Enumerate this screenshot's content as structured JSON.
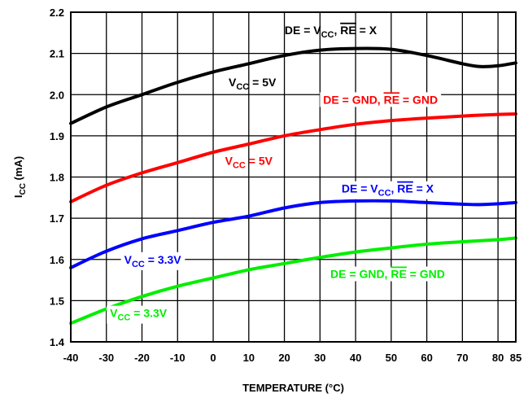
{
  "chart_data": {
    "type": "line",
    "xlabel": "TEMPERATURE (°C)",
    "ylabel_main": "I",
    "ylabel_sub": "CC",
    "ylabel_suffix": " (mA)",
    "xlim": [
      -40,
      85
    ],
    "ylim": [
      1.4,
      2.2
    ],
    "x_ticks": [
      -40,
      -30,
      -20,
      -10,
      0,
      10,
      20,
      30,
      40,
      50,
      60,
      70,
      80,
      85
    ],
    "x_tick_labels": [
      "-40",
      "-30",
      "-20",
      "-10",
      "0",
      "10",
      "20",
      "30",
      "40",
      "50",
      "60",
      "70",
      "80",
      "85"
    ],
    "y_ticks": [
      1.4,
      1.5,
      1.6,
      1.7,
      1.8,
      1.9,
      2.0,
      2.1,
      2.2
    ],
    "y_tick_labels": [
      "1.4",
      "1.5",
      "1.6",
      "1.7",
      "1.8",
      "1.9",
      "2.0",
      "2.1",
      "2.2"
    ],
    "grid": true,
    "series": [
      {
        "key": "black",
        "color": "#000000",
        "x": [
          -40,
          -30,
          -20,
          -10,
          0,
          10,
          20,
          30,
          40,
          50,
          60,
          70,
          75,
          80,
          85
        ],
        "y": [
          1.93,
          1.97,
          2.0,
          2.03,
          2.055,
          2.075,
          2.095,
          2.108,
          2.112,
          2.11,
          2.095,
          2.075,
          2.068,
          2.07,
          2.077
        ]
      },
      {
        "key": "red",
        "color": "#ff0000",
        "x": [
          -40,
          -30,
          -20,
          -10,
          0,
          10,
          20,
          30,
          40,
          50,
          60,
          70,
          80,
          85
        ],
        "y": [
          1.74,
          1.78,
          1.81,
          1.835,
          1.86,
          1.88,
          1.9,
          1.915,
          1.928,
          1.937,
          1.943,
          1.948,
          1.952,
          1.953
        ]
      },
      {
        "key": "blue",
        "color": "#0000ff",
        "x": [
          -40,
          -30,
          -20,
          -10,
          0,
          10,
          20,
          30,
          40,
          50,
          60,
          70,
          75,
          80,
          85
        ],
        "y": [
          1.58,
          1.62,
          1.65,
          1.67,
          1.69,
          1.705,
          1.725,
          1.738,
          1.742,
          1.742,
          1.738,
          1.734,
          1.733,
          1.735,
          1.738
        ]
      },
      {
        "key": "green",
        "color": "#00ee00",
        "x": [
          -40,
          -30,
          -20,
          -10,
          0,
          10,
          20,
          30,
          40,
          50,
          60,
          70,
          80,
          85
        ],
        "y": [
          1.445,
          1.48,
          1.51,
          1.535,
          1.555,
          1.575,
          1.59,
          1.605,
          1.618,
          1.628,
          1.637,
          1.643,
          1.648,
          1.652
        ]
      }
    ],
    "annotations": [
      {
        "key": "black-de",
        "color": "#000000",
        "x": 33,
        "y": 2.147,
        "bg": false,
        "parts": [
          {
            "t": "DE = V",
            "s": "n"
          },
          {
            "t": "CC",
            "s": "sub"
          },
          {
            "t": ", ",
            "s": "n"
          },
          {
            "t": "RE",
            "s": "over"
          },
          {
            "t": " = X",
            "s": "n"
          }
        ]
      },
      {
        "key": "black-vcc",
        "color": "#000000",
        "x": 11,
        "y": 2.02,
        "bg": false,
        "parts": [
          {
            "t": "V",
            "s": "n"
          },
          {
            "t": "CC",
            "s": "sub"
          },
          {
            "t": " = 5V",
            "s": "n"
          }
        ]
      },
      {
        "key": "red-de",
        "color": "#ff0000",
        "x": 47,
        "y": 1.978,
        "bg": true,
        "parts": [
          {
            "t": "DE = GND, ",
            "s": "n"
          },
          {
            "t": "RE",
            "s": "over"
          },
          {
            "t": " = GND",
            "s": "n"
          }
        ]
      },
      {
        "key": "red-vcc",
        "color": "#ff0000",
        "x": 10,
        "y": 1.83,
        "bg": false,
        "parts": [
          {
            "t": "V",
            "s": "n"
          },
          {
            "t": "CC",
            "s": "sub"
          },
          {
            "t": " = 5V",
            "s": "n"
          }
        ]
      },
      {
        "key": "blue-de",
        "color": "#0000ff",
        "x": 49,
        "y": 1.762,
        "bg": true,
        "parts": [
          {
            "t": "DE = V",
            "s": "n"
          },
          {
            "t": "CC",
            "s": "sub"
          },
          {
            "t": ", ",
            "s": "n"
          },
          {
            "t": "RE",
            "s": "over"
          },
          {
            "t": " = X",
            "s": "n"
          }
        ]
      },
      {
        "key": "blue-vcc",
        "color": "#0000ff",
        "x": -17,
        "y": 1.59,
        "bg": true,
        "parts": [
          {
            "t": "V",
            "s": "n"
          },
          {
            "t": "CC",
            "s": "sub"
          },
          {
            "t": " = 3.3V",
            "s": "n"
          }
        ]
      },
      {
        "key": "green-de",
        "color": "#00ee00",
        "x": 49,
        "y": 1.555,
        "bg": true,
        "parts": [
          {
            "t": "DE = GND, ",
            "s": "n"
          },
          {
            "t": "RE",
            "s": "over"
          },
          {
            "t": " = GND",
            "s": "n"
          }
        ]
      },
      {
        "key": "green-vcc",
        "color": "#00ee00",
        "x": -21,
        "y": 1.46,
        "bg": true,
        "parts": [
          {
            "t": "V",
            "s": "n"
          },
          {
            "t": "CC",
            "s": "sub"
          },
          {
            "t": " = 3.3V",
            "s": "n"
          }
        ]
      }
    ]
  }
}
